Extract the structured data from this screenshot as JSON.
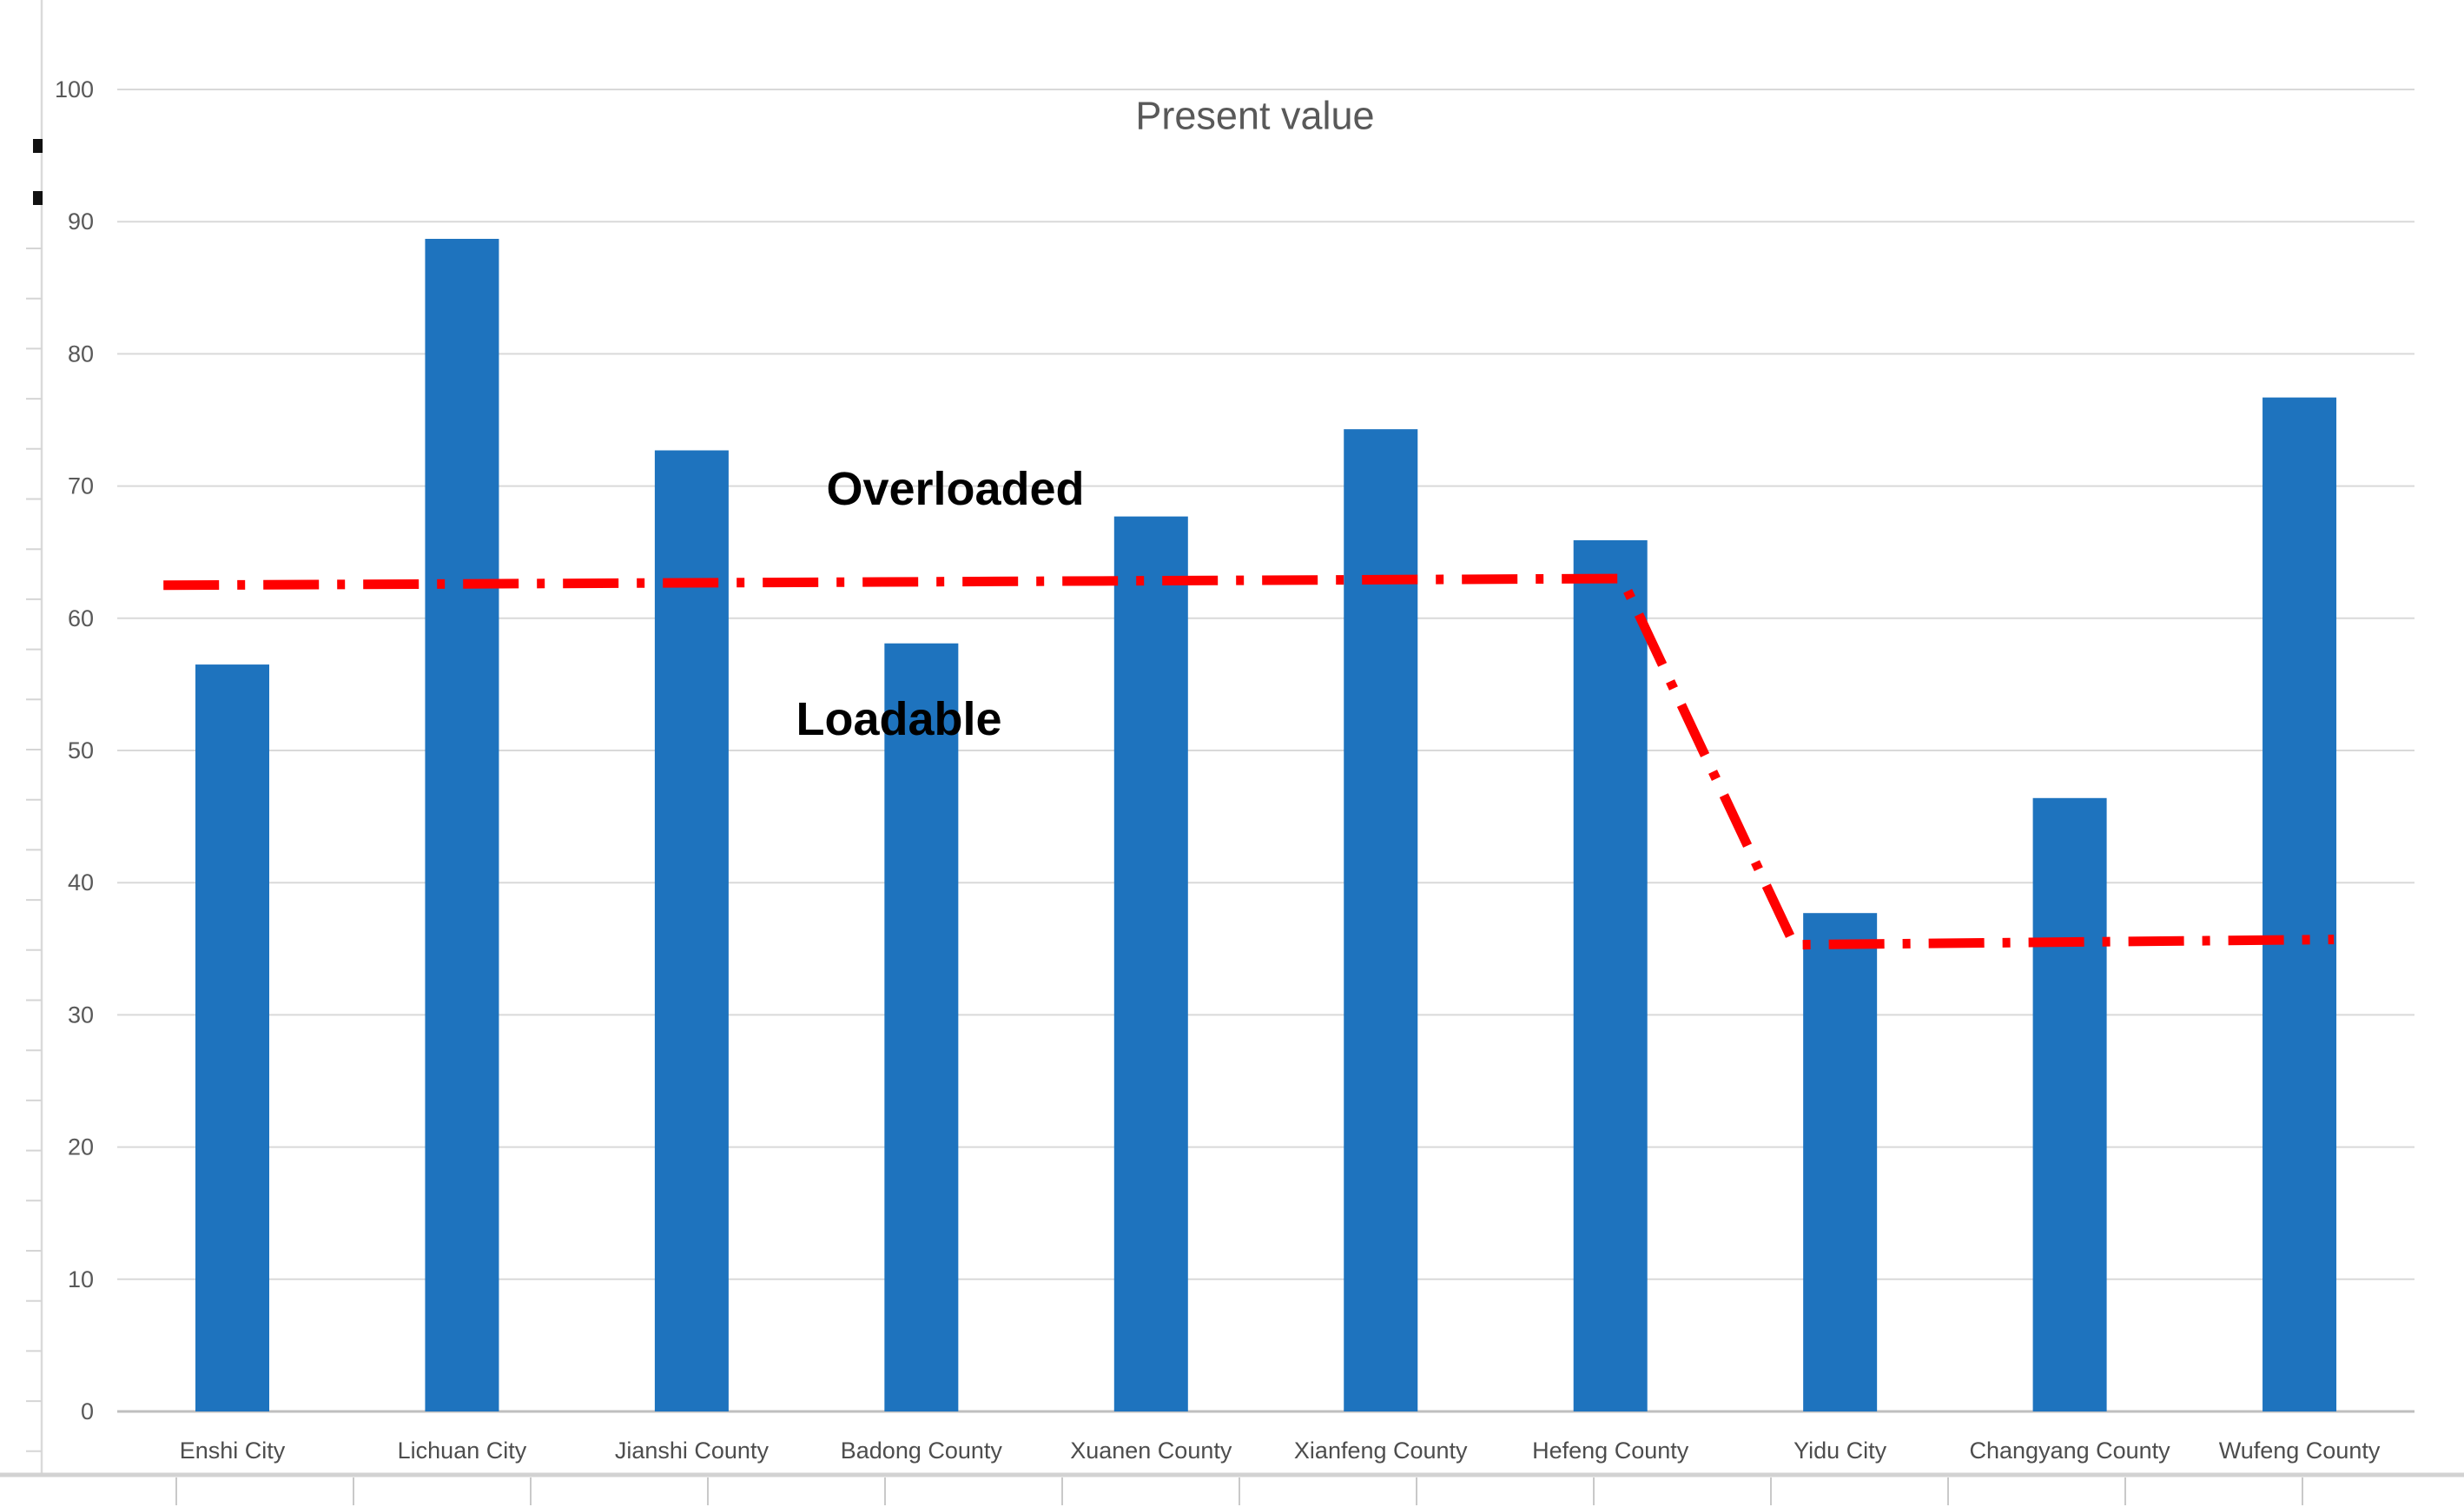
{
  "chart_data": {
    "type": "bar",
    "title": "Present value",
    "categories": [
      "Enshi City",
      "Lichuan City",
      "Jianshi County",
      "Badong County",
      "Xuanen County",
      "Xianfeng County",
      "Hefeng County",
      "Yidu City",
      "Changyang County",
      "Wufeng County"
    ],
    "values": [
      56.5,
      88.7,
      72.7,
      58.1,
      67.7,
      74.3,
      65.9,
      37.7,
      46.4,
      76.7
    ],
    "series": [
      {
        "name": "Present value",
        "type": "bar",
        "values": [
          56.5,
          88.7,
          72.7,
          58.1,
          67.7,
          74.3,
          65.9,
          37.7,
          46.4,
          76.7
        ]
      }
    ],
    "bar_color": "#1E73BE",
    "ylim": [
      0,
      100
    ],
    "ytick_step": 10,
    "yticks": [
      0,
      10,
      20,
      30,
      40,
      50,
      60,
      70,
      80,
      90,
      100
    ],
    "gridlines": true,
    "gridline_color": "#D9D9D9",
    "axis_line_color": "#BFBFBF",
    "legend": "none",
    "threshold_line": {
      "name": "load-limit-line",
      "color": "#FF0000",
      "style": "dash-dot",
      "level_by_category": [
        63,
        63,
        63,
        63,
        63,
        63,
        63,
        35.5,
        35.5,
        35.5
      ],
      "points_unit_value": [
        [
          -0.3,
          62.5
        ],
        [
          6.05,
          63.0
        ],
        [
          6.8,
          35.3
        ],
        [
          9.15,
          35.7
        ]
      ]
    },
    "annotations": [
      {
        "text": "Overloaded",
        "meaning": "region above threshold line"
      },
      {
        "text": "Loadable",
        "meaning": "region below threshold line"
      }
    ]
  },
  "text_colors": {
    "title": "#595959",
    "tick_labels": "#595959",
    "annotations": "#000000"
  }
}
